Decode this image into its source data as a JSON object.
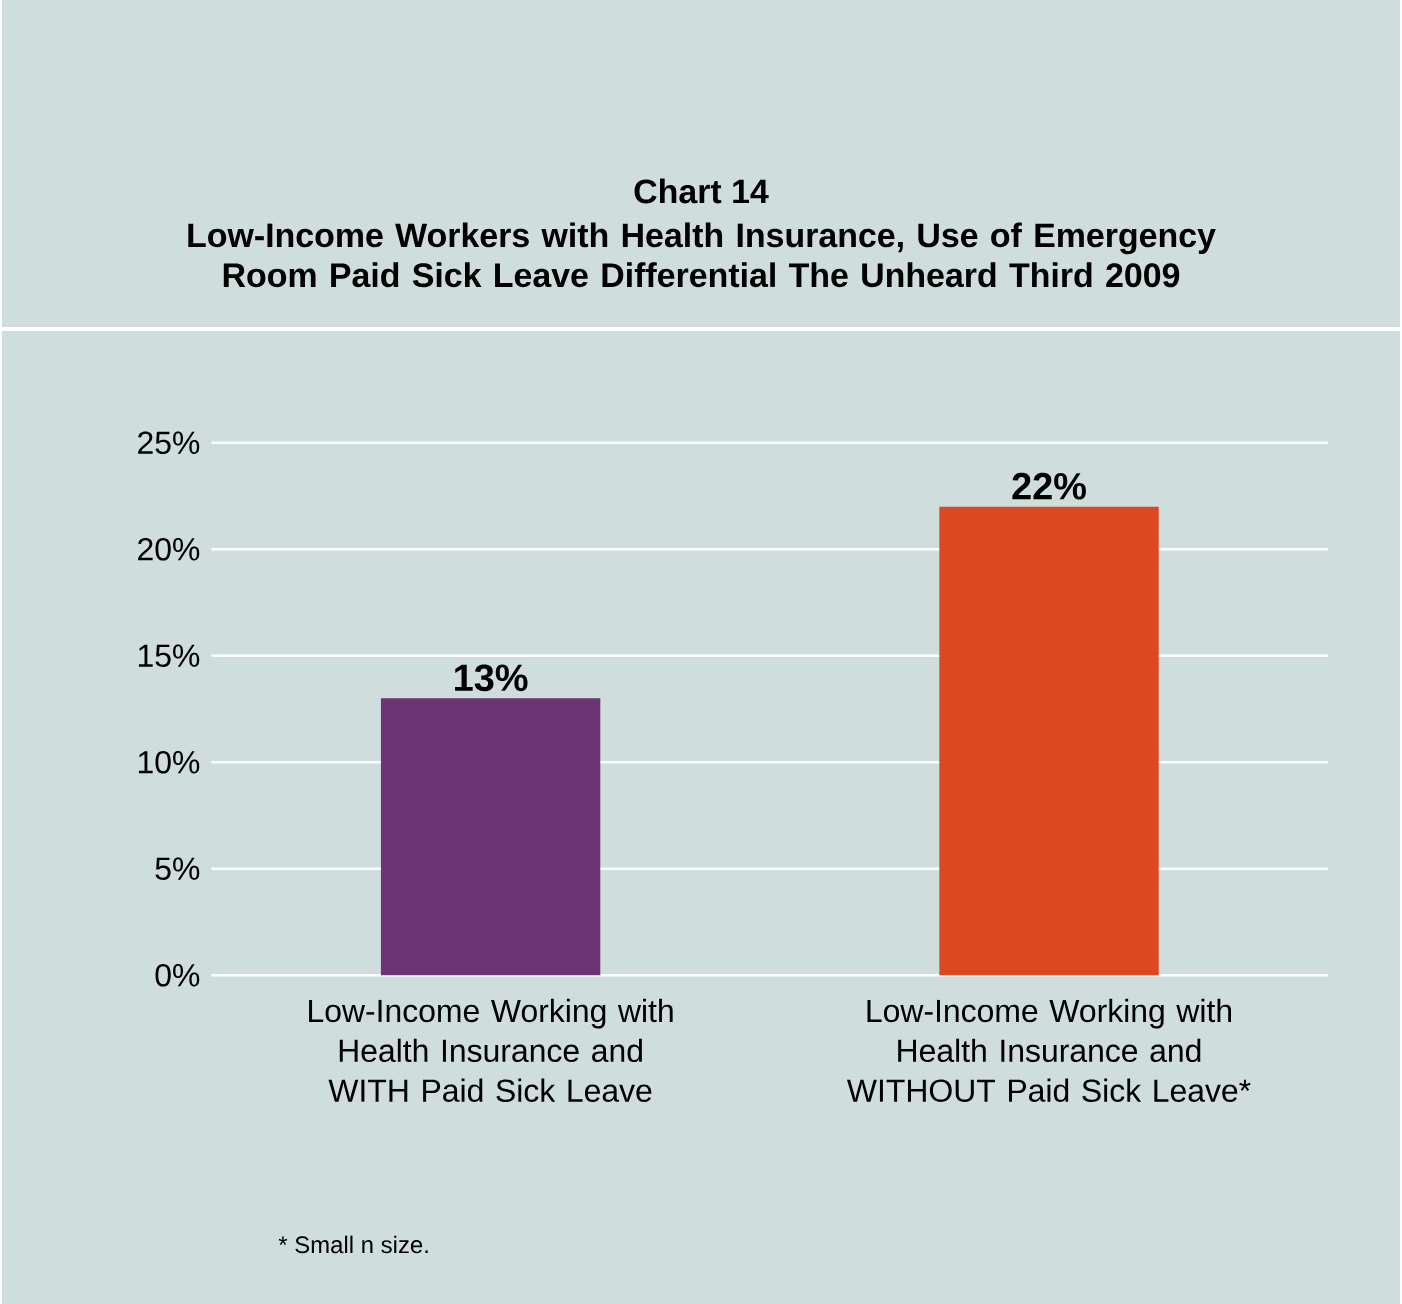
{
  "chart_data": {
    "type": "bar",
    "title": "Chart 14",
    "subtitle": "Low-Income Workers with Health Insurance, Use of Emergency Room Paid Sick Leave Differential The Unheard Third 2009",
    "categories": [
      "Low-Income Working with Health Insurance and WITH Paid Sick Leave",
      "Low-Income Working with Health Insurance and WITHOUT Paid Sick Leave*"
    ],
    "values": [
      13,
      22
    ],
    "colors": [
      "#6b3574",
      "#dc481f"
    ],
    "ylim": [
      0,
      25
    ],
    "yticks": [
      {
        "value": 0,
        "label": "0%"
      },
      {
        "value": 5,
        "label": "5%"
      },
      {
        "value": 10,
        "label": "10%"
      },
      {
        "value": 15,
        "label": "15%"
      },
      {
        "value": 20,
        "label": "20%"
      },
      {
        "value": 25,
        "label": "25%"
      }
    ],
    "value_labels": [
      "13%",
      "22%"
    ],
    "grid": "y",
    "annotations": [
      "* Small n size."
    ]
  }
}
